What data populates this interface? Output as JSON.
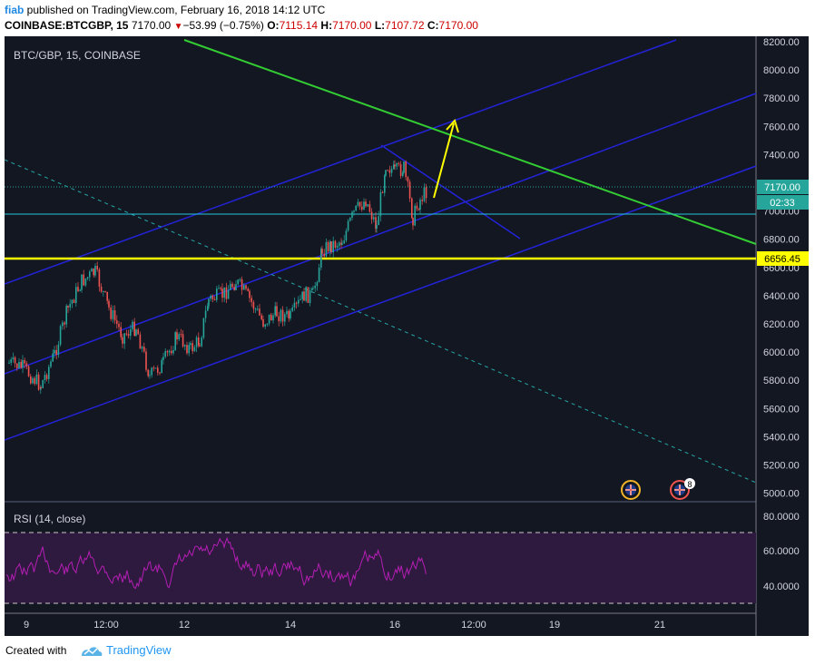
{
  "header": {
    "user": "fiab",
    "published_text": " published on TradingView.com, February 16, 2018 14:12 UTC",
    "symbol": "COINBASE:BTCGBP, 15",
    "last": "7170.00",
    "change_arrow": "▼",
    "change": "−53.99 (−0.75%)",
    "o_label": "O:",
    "o_value": "7115.14",
    "h_label": "H:",
    "h_value": "7170.00",
    "l_label": "L:",
    "l_value": "7107.72",
    "c_label": "C:",
    "c_value": "7170.00"
  },
  "chart": {
    "legend": "BTC/GBP, 15, COINBASE",
    "rsi_legend": "RSI (14, close)",
    "price_axis": [
      "8200.00",
      "8000.00",
      "7800.00",
      "7600.00",
      "7400.00",
      "7200.00",
      "7000.00",
      "6800.00",
      "6600.00",
      "6400.00",
      "6200.00",
      "6000.00",
      "5800.00",
      "5600.00",
      "5400.00",
      "5200.00",
      "5000.00"
    ],
    "rsi_axis": [
      "80.0000",
      "60.0000",
      "40.0000"
    ],
    "time_axis": [
      "9",
      "12:00",
      "12",
      "14",
      "16",
      "12:00",
      "19",
      "21"
    ],
    "last_price_label": "7170.00",
    "countdown_label": "02:33",
    "support_label": "6656.45",
    "event_count": "8",
    "colors": {
      "background": "#131722",
      "up_candle": "#26a69a",
      "down_candle": "#ef5350",
      "channel": "#2323d8",
      "green_line": "#33cc33",
      "yellow_line": "#ffff00",
      "rsi_line": "#b41eb4",
      "rsi_band": "#2e1a3e"
    }
  },
  "footer": {
    "created_with": "Created with",
    "brand": "TradingView"
  }
}
